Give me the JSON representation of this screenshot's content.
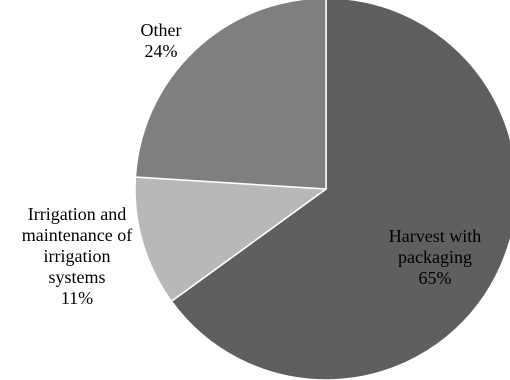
{
  "chart_data": {
    "type": "pie",
    "title": "",
    "slices": [
      {
        "label_lines": [
          "Harvest with",
          "packaging"
        ],
        "value": 65,
        "value_label": "65%",
        "color": "#5f5f5f"
      },
      {
        "label_lines": [
          "Irrigation and",
          "maintenance of",
          "irrigation",
          "systems"
        ],
        "value": 11,
        "value_label": "11%",
        "color": "#b8b8b8"
      },
      {
        "label_lines": [
          "Other"
        ],
        "value": 24,
        "value_label": "24%",
        "color": "#7f7f7f"
      }
    ],
    "start_angle": "12 o'clock",
    "direction": "clockwise",
    "legend": "none",
    "border_color": "#ffffff"
  }
}
